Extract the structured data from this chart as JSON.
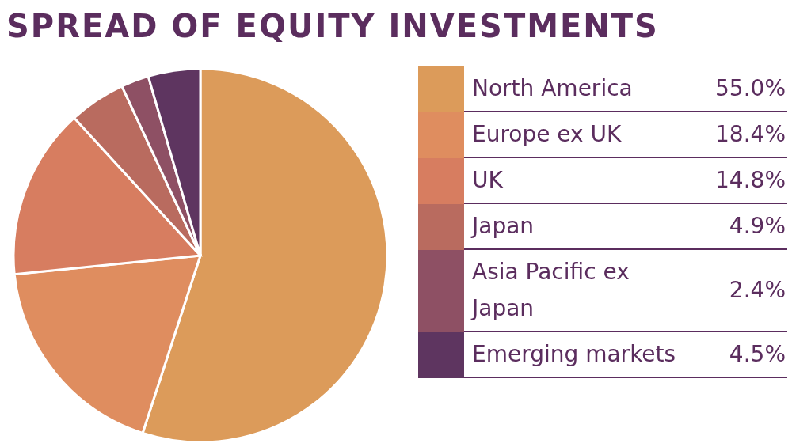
{
  "chart_data": {
    "type": "pie",
    "title": "SPREAD OF EQUITY INVESTMENTS",
    "categories": [
      "North America",
      "Europe ex UK",
      "UK",
      "Japan",
      "Asia Pacific ex Japan",
      "Emerging markets"
    ],
    "values": [
      55.0,
      18.4,
      14.8,
      4.9,
      2.4,
      4.5
    ],
    "value_labels": [
      "55.0%",
      "18.4%",
      "14.8%",
      "4.9%",
      "2.4%",
      "4.5%"
    ],
    "colors": [
      "#dc9b5a",
      "#df8d5f",
      "#d77d60",
      "#b96b5f",
      "#8e5064",
      "#5e3560"
    ],
    "legend": "right"
  }
}
